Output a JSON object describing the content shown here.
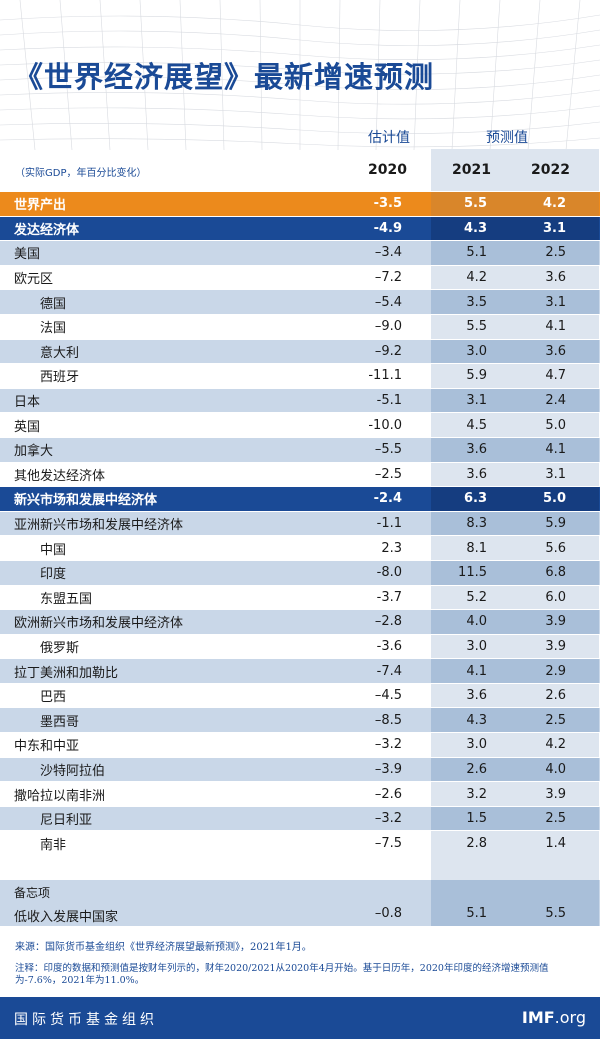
{
  "title": "《世界经济展望》最新增速预测",
  "headers": {
    "estimate": "估计值",
    "projections": "预测值",
    "unit_note": "（实际GDP，年百分比变化）",
    "years": [
      "2020",
      "2021",
      "2022"
    ]
  },
  "rows": [
    {
      "label": "世界产出",
      "v": [
        "-3.5",
        "5.5",
        "4.2"
      ],
      "style": "orange"
    },
    {
      "label": "发达经济体",
      "v": [
        "-4.9",
        "4.3",
        "3.1"
      ],
      "style": "navy"
    },
    {
      "label": "美国",
      "v": [
        "–3.4",
        "5.1",
        "2.5"
      ],
      "style": "blue"
    },
    {
      "label": "欧元区",
      "v": [
        "–7.2",
        "4.2",
        "3.6"
      ],
      "style": "white"
    },
    {
      "label": "德国",
      "v": [
        "–5.4",
        "3.5",
        "3.1"
      ],
      "style": "blue",
      "indent": true
    },
    {
      "label": "法国",
      "v": [
        "–9.0",
        "5.5",
        "4.1"
      ],
      "style": "white",
      "indent": true
    },
    {
      "label": "意大利",
      "v": [
        "–9.2",
        "3.0",
        "3.6"
      ],
      "style": "blue",
      "indent": true
    },
    {
      "label": "西班牙",
      "v": [
        "-11.1",
        "5.9",
        "4.7"
      ],
      "style": "white",
      "indent": true
    },
    {
      "label": "日本",
      "v": [
        "-5.1",
        "3.1",
        "2.4"
      ],
      "style": "blue"
    },
    {
      "label": "英国",
      "v": [
        "-10.0",
        "4.5",
        "5.0"
      ],
      "style": "white"
    },
    {
      "label": "加拿大",
      "v": [
        "–5.5",
        "3.6",
        "4.1"
      ],
      "style": "blue"
    },
    {
      "label": "其他发达经济体",
      "v": [
        "–2.5",
        "3.6",
        "3.1"
      ],
      "style": "white"
    },
    {
      "label": "新兴市场和发展中经济体",
      "v": [
        "-2.4",
        "6.3",
        "5.0"
      ],
      "style": "navy"
    },
    {
      "label": "亚洲新兴市场和发展中经济体",
      "v": [
        "-1.1",
        "8.3",
        "5.9"
      ],
      "style": "blue"
    },
    {
      "label": "中国",
      "v": [
        "2.3",
        "8.1",
        "5.6"
      ],
      "style": "white",
      "indent": true
    },
    {
      "label": "印度",
      "v": [
        "-8.0",
        "11.5",
        "6.8"
      ],
      "style": "blue",
      "indent": true
    },
    {
      "label": "东盟五国",
      "v": [
        "-3.7",
        "5.2",
        "6.0"
      ],
      "style": "white",
      "indent": true
    },
    {
      "label": "欧洲新兴市场和发展中经济体",
      "v": [
        "–2.8",
        "4.0",
        "3.9"
      ],
      "style": "blue"
    },
    {
      "label": "俄罗斯",
      "v": [
        "-3.6",
        "3.0",
        "3.9"
      ],
      "style": "white",
      "indent": true
    },
    {
      "label": "拉丁美洲和加勒比",
      "v": [
        "-7.4",
        "4.1",
        "2.9"
      ],
      "style": "blue"
    },
    {
      "label": "巴西",
      "v": [
        "–4.5",
        "3.6",
        "2.6"
      ],
      "style": "white",
      "indent": true
    },
    {
      "label": "墨西哥",
      "v": [
        "–8.5",
        "4.3",
        "2.5"
      ],
      "style": "blue",
      "indent": true
    },
    {
      "label": "中东和中亚",
      "v": [
        "–3.2",
        "3.0",
        "4.2"
      ],
      "style": "white"
    },
    {
      "label": "沙特阿拉伯",
      "v": [
        "–3.9",
        "2.6",
        "4.0"
      ],
      "style": "blue",
      "indent": true
    },
    {
      "label": "撒哈拉以南非洲",
      "v": [
        "–2.6",
        "3.2",
        "3.9"
      ],
      "style": "white"
    },
    {
      "label": "尼日利亚",
      "v": [
        "–3.2",
        "1.5",
        "2.5"
      ],
      "style": "blue",
      "indent": true
    },
    {
      "label": "南非",
      "v": [
        "–7.5",
        "2.8",
        "1.4"
      ],
      "style": "white",
      "indent": true
    }
  ],
  "memo": {
    "heading": "备忘项",
    "label": "低收入发展中国家",
    "v": [
      "–0.8",
      "5.1",
      "5.5"
    ]
  },
  "source": "来源：国际货币基金组织《世界经济展望最新预测》，2021年1月。",
  "note": "注释：印度的数据和预测值是按财年列示的，财年2020/2021从2020年4月开始。基于日历年，2020年印度的经济增速预测值为-7.6%，2021年为11.0%。",
  "footer": {
    "org": "国际货币基金组织",
    "site_bold": "IMF",
    "site_rest": ".org"
  },
  "colors": {
    "navy": "#1a4a96",
    "orange": "#ec8a1c",
    "light_blue": "#c9d7e8",
    "forecast_band": "#dde5ef"
  }
}
